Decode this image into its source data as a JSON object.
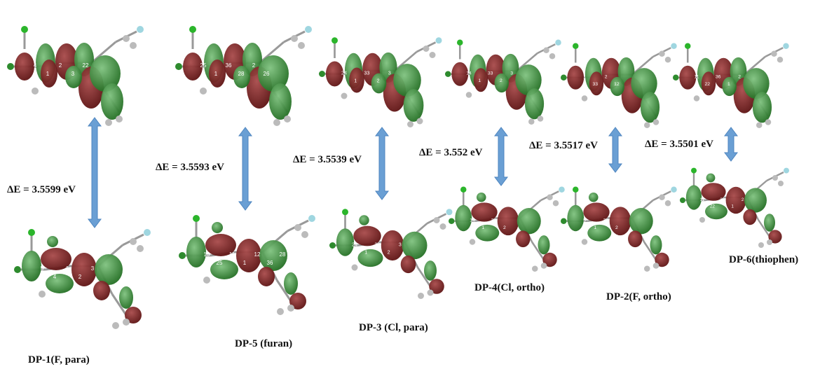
{
  "molecules": [
    {
      "name": "DP-1(F, para)",
      "gap": "ΔE =  3.5599 eV",
      "homo_labels": [
        "4",
        "1",
        "2",
        "3",
        "22"
      ],
      "lumo_labels": [
        "5",
        "4",
        "1",
        "2",
        "3"
      ]
    },
    {
      "name": "DP-5 (furan)",
      "gap": "ΔE =  3.5593 eV",
      "homo_labels": [
        "25",
        "1",
        "36",
        "28",
        "2",
        "26"
      ],
      "lumo_labels": [
        "13",
        "25",
        "11",
        "1",
        "12",
        "36",
        "28",
        "2"
      ]
    },
    {
      "name": "DP-3 (Cl, para)",
      "gap": "ΔE =  3.5539 eV",
      "homo_labels": [
        "24",
        "1",
        "33",
        "2",
        "3"
      ],
      "lumo_labels": [
        "24",
        "1",
        "33",
        "2",
        "3"
      ]
    },
    {
      "name": "DP-4(Cl, ortho)",
      "gap": "ΔE =  3.552 eV",
      "homo_labels": [
        "14",
        "1",
        "33",
        "2",
        "3"
      ],
      "lumo_labels": [
        "14",
        "1",
        "33",
        "2"
      ]
    },
    {
      "name": "DP-2(F, ortho)",
      "gap": "ΔE =  3.5517 eV",
      "homo_labels": [
        "1",
        "33",
        "2",
        "12"
      ],
      "lumo_labels": [
        "5",
        "1",
        "33",
        "2"
      ]
    },
    {
      "name": "DP-6(thiophen)",
      "gap": "ΔE =  3.5501 eV",
      "homo_labels": [
        "11",
        "22",
        "36",
        "1",
        "2"
      ],
      "lumo_labels": [
        "11",
        "22",
        "36",
        "1",
        "2"
      ]
    }
  ]
}
